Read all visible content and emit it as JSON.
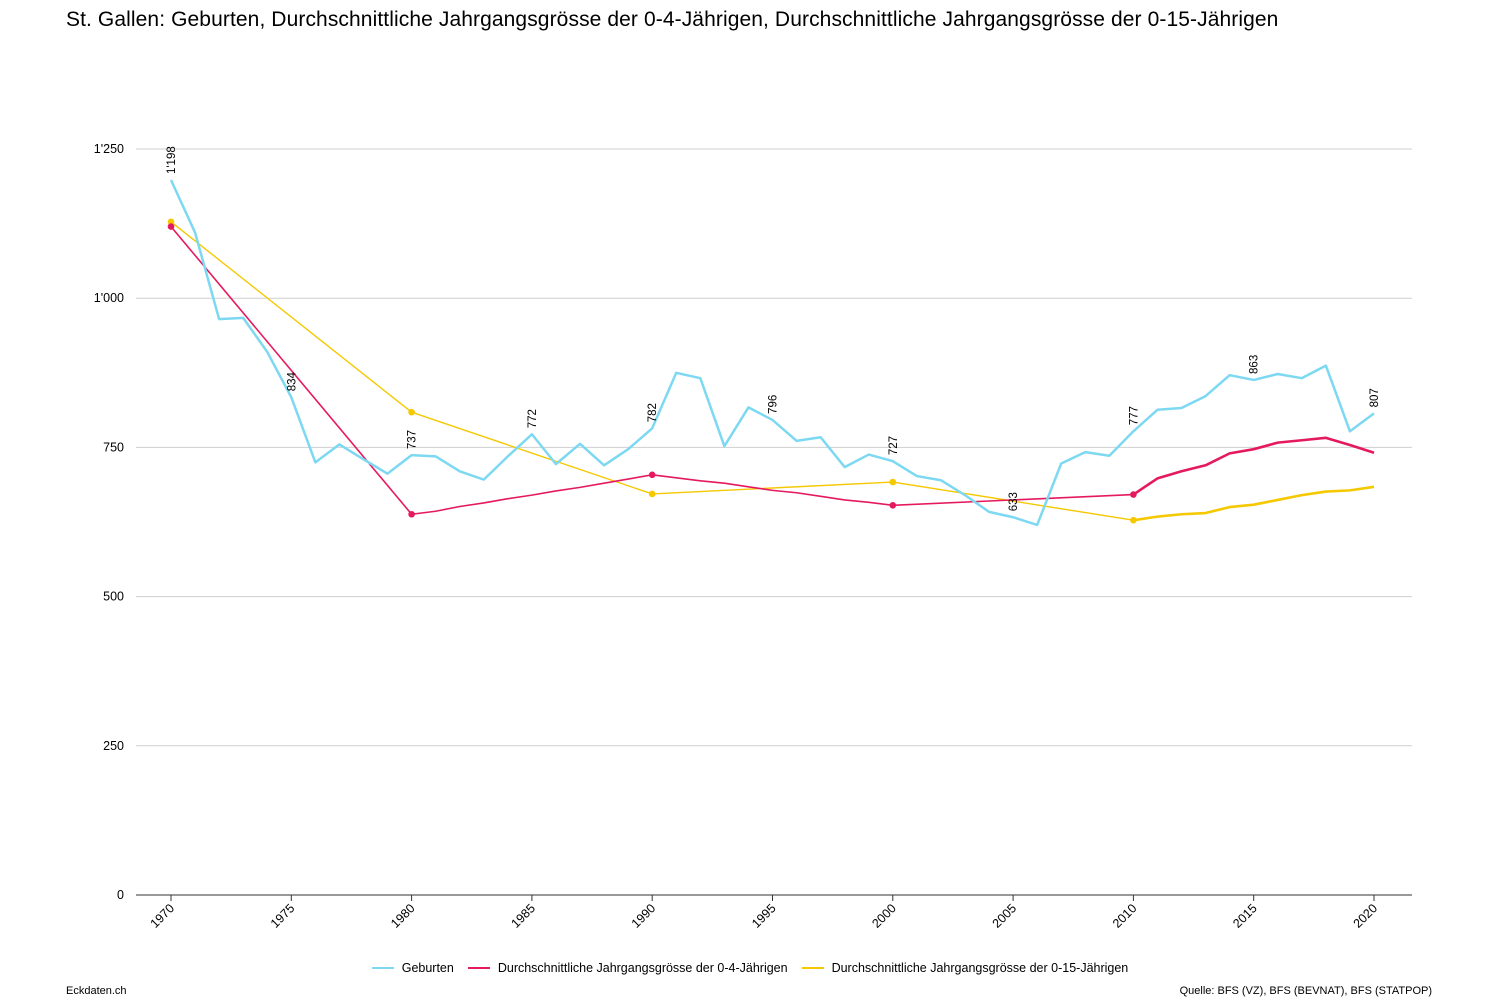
{
  "title": "St. Gallen: Geburten, Durchschnittliche Jahrgangsgrösse der 0-4-Jährigen, Durchschnittliche Jahrgangsgrösse der 0-15-Jährigen",
  "footer": {
    "left": "Eckdaten.ch",
    "right": "Quelle: BFS (VZ), BFS (BEVNAT), BFS (STATPOP)"
  },
  "chart_data": {
    "type": "line",
    "title": "St. Gallen: Geburten, Durchschnittliche Jahrgangsgrösse der 0-4-Jährigen, Durchschnittliche Jahrgangsgrösse der 0-15-Jährigen",
    "xlim": [
      1970,
      2020
    ],
    "ylim": [
      0,
      1250
    ],
    "x_ticks": [
      1970,
      1975,
      1980,
      1985,
      1990,
      1995,
      2000,
      2005,
      2010,
      2015,
      2020
    ],
    "y_ticks": [
      0,
      250,
      500,
      750,
      1000,
      1250
    ],
    "y_tick_labels": [
      "0",
      "250",
      "500",
      "750",
      "1'000",
      "1'250"
    ],
    "grid": true,
    "legend_position": "bottom-center",
    "series": [
      {
        "name": "Geburten",
        "color": "#7dd8f2",
        "x": [
          1970,
          1971,
          1972,
          1973,
          1974,
          1975,
          1976,
          1977,
          1978,
          1979,
          1980,
          1981,
          1982,
          1983,
          1984,
          1985,
          1986,
          1987,
          1988,
          1989,
          1990,
          1991,
          1992,
          1993,
          1994,
          1995,
          1996,
          1997,
          1998,
          1999,
          2000,
          2001,
          2002,
          2003,
          2004,
          2005,
          2006,
          2007,
          2008,
          2009,
          2010,
          2011,
          2012,
          2013,
          2014,
          2015,
          2016,
          2017,
          2018,
          2019,
          2020
        ],
        "y": [
          1198,
          1110,
          965,
          967,
          910,
          834,
          725,
          755,
          730,
          706,
          737,
          735,
          710,
          696,
          735,
          772,
          722,
          756,
          720,
          747,
          782,
          875,
          866,
          752,
          817,
          796,
          761,
          767,
          717,
          738,
          727,
          702,
          695,
          670,
          642,
          633,
          620,
          723,
          742,
          736,
          777,
          813,
          816,
          836,
          871,
          863,
          873,
          866,
          887,
          777,
          807
        ],
        "labels": [
          {
            "x": 1970,
            "text": "1'198"
          },
          {
            "x": 1975,
            "text": "834"
          },
          {
            "x": 1980,
            "text": "737"
          },
          {
            "x": 1985,
            "text": "772"
          },
          {
            "x": 1990,
            "text": "782"
          },
          {
            "x": 1995,
            "text": "796"
          },
          {
            "x": 2000,
            "text": "727"
          },
          {
            "x": 2005,
            "text": "633"
          },
          {
            "x": 2010,
            "text": "777"
          },
          {
            "x": 2015,
            "text": "863"
          },
          {
            "x": 2020,
            "text": "807"
          }
        ]
      },
      {
        "name": "Durchschnittliche Jahrgangsgrösse der 0-4-Jährigen",
        "color": "#e5195f",
        "x": [
          1970,
          1980,
          1981,
          1982,
          1983,
          1984,
          1985,
          1986,
          1987,
          1988,
          1989,
          1990,
          1991,
          1992,
          1993,
          1994,
          1995,
          1996,
          1997,
          1998,
          1999,
          2000,
          2010,
          2011,
          2012,
          2013,
          2014,
          2015,
          2016,
          2017,
          2018,
          2019,
          2020
        ],
        "y": [
          1120,
          638,
          643,
          651,
          657,
          664,
          670,
          677,
          683,
          690,
          697,
          704,
          699,
          694,
          690,
          684,
          678,
          674,
          668,
          662,
          658,
          653,
          671,
          698,
          710,
          720,
          740,
          747,
          758,
          762,
          766,
          754,
          741
        ],
        "markers": [
          1970,
          1980,
          1990,
          2000,
          2010
        ]
      },
      {
        "name": "Durchschnittliche Jahrgangsgrösse der 0-15-Jährigen",
        "color": "#f5c800",
        "x": [
          1970,
          1980,
          1990,
          2000,
          2010,
          2011,
          2012,
          2013,
          2014,
          2015,
          2016,
          2017,
          2018,
          2019,
          2020
        ],
        "y": [
          1128,
          809,
          672,
          692,
          628,
          634,
          638,
          640,
          650,
          654,
          662,
          670,
          676,
          678,
          684
        ],
        "markers": [
          1970,
          1980,
          1990,
          2000,
          2010
        ]
      }
    ]
  }
}
